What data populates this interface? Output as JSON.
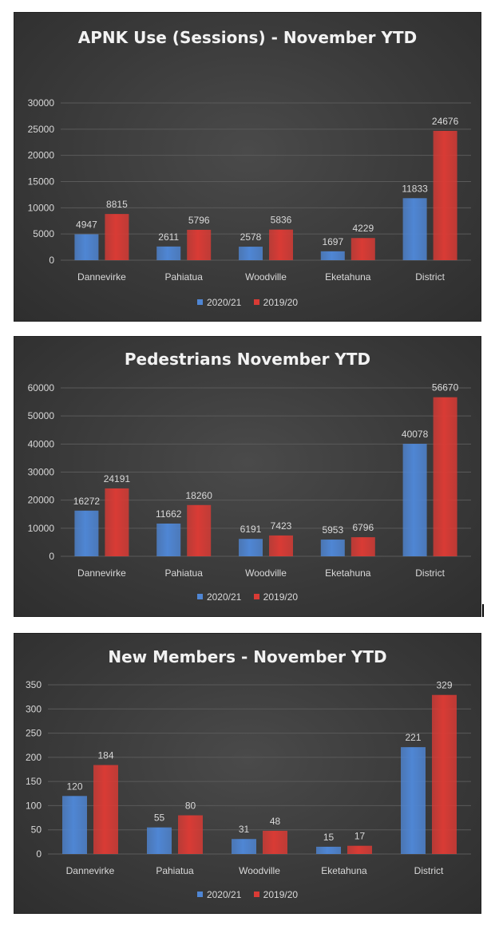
{
  "colors": {
    "series_2020_21": "#4f86d4",
    "series_2019_20": "#d93b35",
    "label_text": "#d9d9d9",
    "grid": "#5a5a5a"
  },
  "legend": [
    "2020/21",
    "2019/20"
  ],
  "chart_data": [
    {
      "type": "bar",
      "title": "APNK Use (Sessions) - November YTD",
      "categories": [
        "Dannevirke",
        "Pahiatua",
        "Woodville",
        "Eketahuna",
        "District"
      ],
      "series": [
        {
          "name": "2020/21",
          "values": [
            4947,
            2611,
            2578,
            1697,
            11833
          ]
        },
        {
          "name": "2019/20",
          "values": [
            8815,
            5796,
            5836,
            4229,
            24676
          ]
        }
      ],
      "ylim": [
        0,
        30000
      ],
      "yticks": [
        0,
        5000,
        10000,
        15000,
        20000,
        25000,
        30000
      ],
      "grid": true,
      "legend_position": "bottom"
    },
    {
      "type": "bar",
      "title": "Pedestrians November YTD",
      "categories": [
        "Dannevirke",
        "Pahiatua",
        "Woodville",
        "Eketahuna",
        "District"
      ],
      "series": [
        {
          "name": "2020/21",
          "values": [
            16272,
            11662,
            6191,
            5953,
            40078
          ]
        },
        {
          "name": "2019/20",
          "values": [
            24191,
            18260,
            7423,
            6796,
            56670
          ]
        }
      ],
      "ylim": [
        0,
        60000
      ],
      "yticks": [
        0,
        10000,
        20000,
        30000,
        40000,
        50000,
        60000
      ],
      "grid": true,
      "legend_position": "bottom"
    },
    {
      "type": "bar",
      "title": "New Members - November YTD",
      "categories": [
        "Dannevirke",
        "Pahiatua",
        "Woodville",
        "Eketahuna",
        "District"
      ],
      "series": [
        {
          "name": "2020/21",
          "values": [
            120,
            55,
            31,
            15,
            221
          ]
        },
        {
          "name": "2019/20",
          "values": [
            184,
            80,
            48,
            17,
            329
          ]
        }
      ],
      "ylim": [
        0,
        350
      ],
      "yticks": [
        0,
        50,
        100,
        150,
        200,
        250,
        300,
        350
      ],
      "grid": true,
      "legend_position": "bottom"
    }
  ]
}
